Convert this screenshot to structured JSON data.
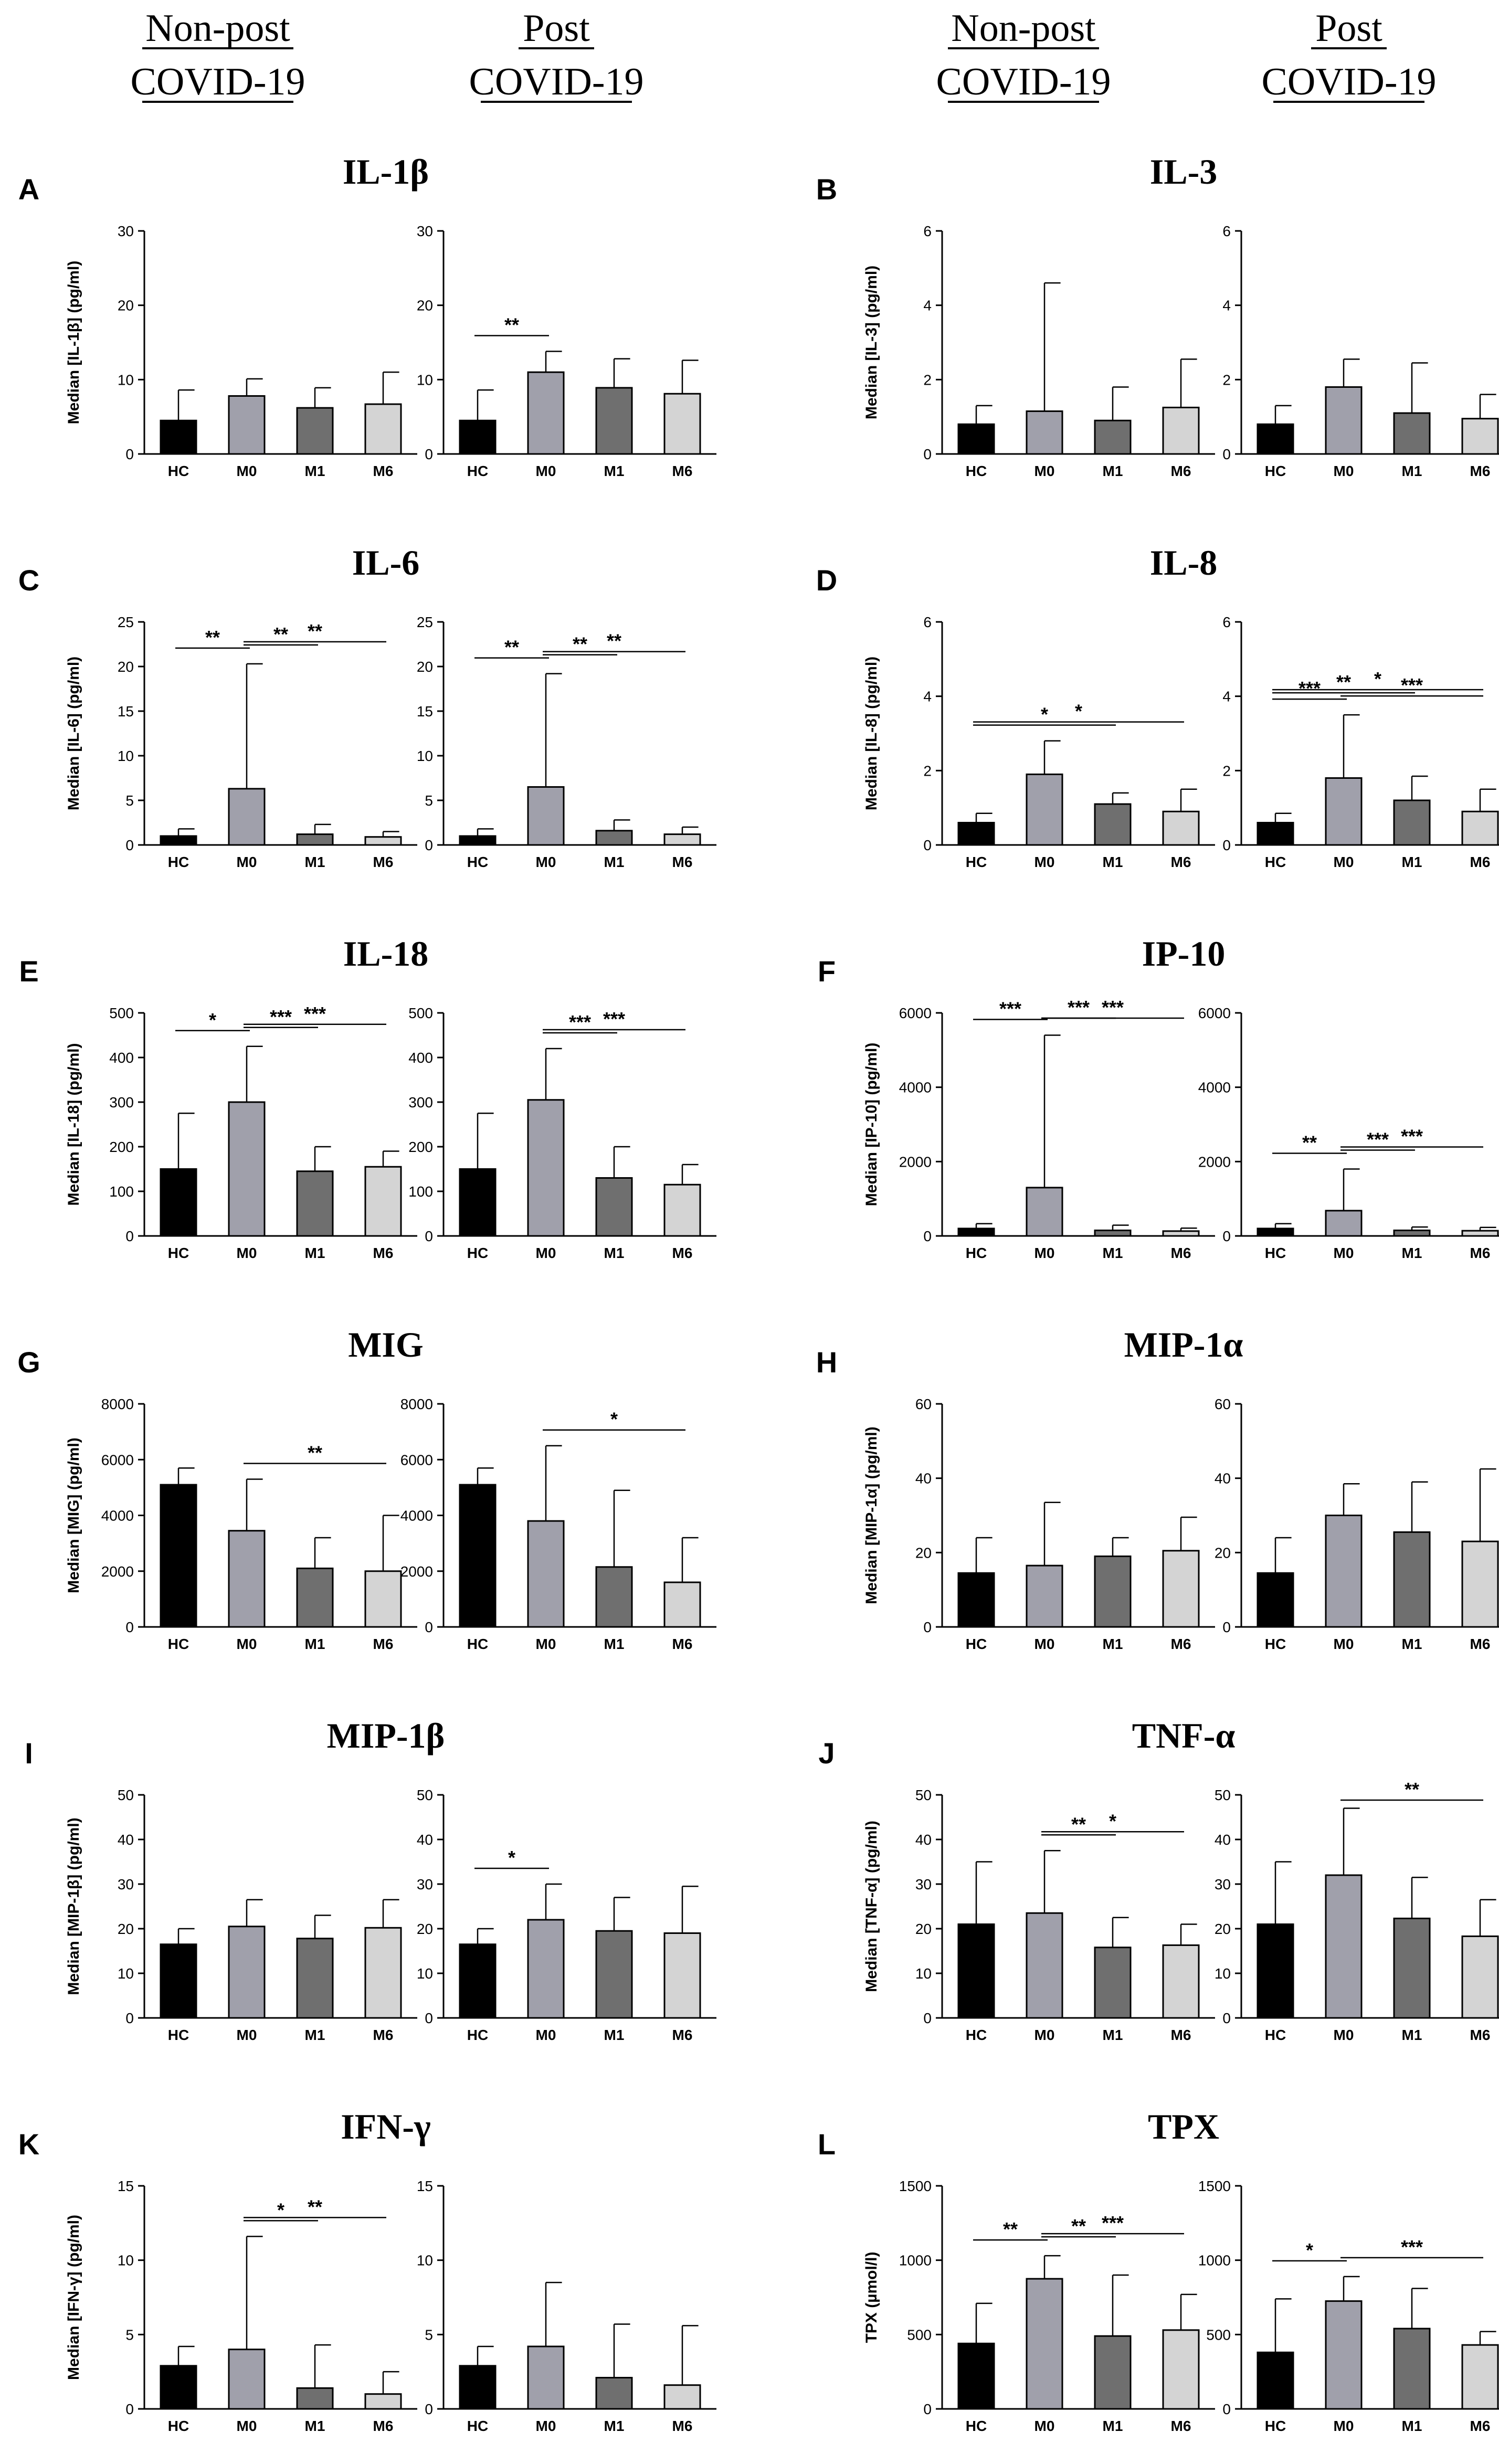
{
  "headers": {
    "left": [
      [
        "Non-post",
        "COVID-19"
      ],
      [
        "Post",
        "COVID-19"
      ]
    ],
    "right": [
      [
        "Non-post",
        "COVID-19"
      ],
      [
        "Post",
        "COVID-19"
      ]
    ]
  },
  "colors": {
    "HC": "#000000",
    "M0": "#a0a0ab",
    "M1": "#6f6f6f",
    "M6": "#d4d4d4"
  },
  "chart_data": [
    {
      "letter": "A",
      "title": "IL-1β",
      "ylabel": "Median [IL-1β] (pg/ml)",
      "type": "bar",
      "categories": [
        "HC",
        "M0",
        "M1",
        "M6"
      ],
      "ylim": [
        0,
        30
      ],
      "yticks": [
        0,
        10,
        20,
        30
      ],
      "panels": [
        {
          "values": [
            4.5,
            7.8,
            6.2,
            6.7
          ],
          "errors": [
            8.6,
            10.1,
            8.9,
            11.0
          ],
          "sig": []
        },
        {
          "values": [
            4.5,
            11.0,
            8.9,
            8.1
          ],
          "errors": [
            8.6,
            13.8,
            12.8,
            12.6
          ],
          "sig": [
            {
              "from": "HC",
              "to": "M0",
              "label": "**"
            }
          ]
        }
      ]
    },
    {
      "letter": "B",
      "title": "IL-3",
      "ylabel": "Median [IL-3] (pg/ml)",
      "type": "bar",
      "categories": [
        "HC",
        "M0",
        "M1",
        "M6"
      ],
      "ylim": [
        0,
        6
      ],
      "yticks": [
        0,
        2,
        4,
        6
      ],
      "panels": [
        {
          "values": [
            0.8,
            1.15,
            0.9,
            1.25
          ],
          "errors": [
            1.3,
            4.6,
            1.8,
            2.55
          ],
          "sig": []
        },
        {
          "values": [
            0.8,
            1.8,
            1.1,
            0.95
          ],
          "errors": [
            1.3,
            2.55,
            2.45,
            1.6
          ],
          "sig": []
        }
      ]
    },
    {
      "letter": "C",
      "title": "IL-6",
      "ylabel": "Median [IL-6] (pg/ml)",
      "type": "bar",
      "categories": [
        "HC",
        "M0",
        "M1",
        "M6"
      ],
      "ylim": [
        0,
        25
      ],
      "yticks": [
        0,
        5,
        10,
        15,
        20,
        25
      ],
      "panels": [
        {
          "values": [
            1.0,
            6.3,
            1.2,
            0.9
          ],
          "errors": [
            1.8,
            20.3,
            2.3,
            1.5
          ],
          "sig": [
            {
              "from": "HC",
              "to": "M0",
              "label": "**"
            },
            {
              "from": "M0",
              "to": "M1",
              "label": "**"
            },
            {
              "from": "M0",
              "to": "M6",
              "label": "**"
            }
          ]
        },
        {
          "values": [
            1.0,
            6.5,
            1.6,
            1.2
          ],
          "errors": [
            1.8,
            19.2,
            2.8,
            2.0
          ],
          "sig": [
            {
              "from": "HC",
              "to": "M0",
              "label": "**"
            },
            {
              "from": "M0",
              "to": "M1",
              "label": "**"
            },
            {
              "from": "M0",
              "to": "M6",
              "label": "**"
            }
          ]
        }
      ]
    },
    {
      "letter": "D",
      "title": "IL-8",
      "ylabel": "Median [IL-8] (pg/ml)",
      "type": "bar",
      "categories": [
        "HC",
        "M0",
        "M1",
        "M6"
      ],
      "ylim": [
        0,
        6
      ],
      "yticks": [
        0,
        2,
        4,
        6
      ],
      "panels": [
        {
          "values": [
            0.6,
            1.9,
            1.1,
            0.9
          ],
          "errors": [
            0.85,
            2.8,
            1.4,
            1.5
          ],
          "sig": [
            {
              "from": "HC",
              "to": "M1",
              "label": "*"
            },
            {
              "from": "HC",
              "to": "M6",
              "label": "*"
            }
          ]
        },
        {
          "values": [
            0.6,
            1.8,
            1.2,
            0.9
          ],
          "errors": [
            0.85,
            3.5,
            1.85,
            1.5
          ],
          "sig": [
            {
              "from": "HC",
              "to": "M0",
              "label": "***"
            },
            {
              "from": "M0",
              "to": "M6",
              "label": "***"
            },
            {
              "from": "HC",
              "to": "M1",
              "label": "**"
            },
            {
              "from": "HC",
              "to": "M6",
              "label": "*"
            }
          ]
        }
      ]
    },
    {
      "letter": "E",
      "title": "IL-18",
      "ylabel": "Median [IL-18] (pg/ml)",
      "type": "bar",
      "categories": [
        "HC",
        "M0",
        "M1",
        "M6"
      ],
      "ylim": [
        0,
        500
      ],
      "yticks": [
        0,
        100,
        200,
        300,
        400,
        500
      ],
      "panels": [
        {
          "values": [
            150,
            300,
            145,
            155
          ],
          "errors": [
            275,
            425,
            200,
            190
          ],
          "sig": [
            {
              "from": "HC",
              "to": "M0",
              "label": "*"
            },
            {
              "from": "M0",
              "to": "M1",
              "label": "***"
            },
            {
              "from": "M0",
              "to": "M6",
              "label": "***"
            }
          ]
        },
        {
          "values": [
            150,
            305,
            130,
            115
          ],
          "errors": [
            275,
            420,
            200,
            160
          ],
          "sig": [
            {
              "from": "M0",
              "to": "M1",
              "label": "***"
            },
            {
              "from": "M0",
              "to": "M6",
              "label": "***"
            }
          ]
        }
      ]
    },
    {
      "letter": "F",
      "title": "IP-10",
      "ylabel": "Median [IP-10] (pg/ml)",
      "type": "bar",
      "categories": [
        "HC",
        "M0",
        "M1",
        "M6"
      ],
      "ylim": [
        0,
        6000
      ],
      "yticks": [
        0,
        2000,
        4000,
        6000
      ],
      "panels": [
        {
          "values": [
            200,
            1300,
            150,
            130
          ],
          "errors": [
            330,
            5400,
            290,
            210
          ],
          "sig": [
            {
              "from": "HC",
              "to": "M0",
              "label": "***"
            },
            {
              "from": "M0",
              "to": "M1",
              "label": "***"
            },
            {
              "from": "M0",
              "to": "M6",
              "label": "***"
            }
          ]
        },
        {
          "values": [
            200,
            680,
            150,
            140
          ],
          "errors": [
            330,
            1800,
            240,
            230
          ],
          "sig": [
            {
              "from": "HC",
              "to": "M0",
              "label": "**"
            },
            {
              "from": "M0",
              "to": "M1",
              "label": "***"
            },
            {
              "from": "M0",
              "to": "M6",
              "label": "***"
            }
          ]
        }
      ]
    },
    {
      "letter": "G",
      "title": "MIG",
      "ylabel": "Median [MIG] (pg/ml)",
      "type": "bar",
      "categories": [
        "HC",
        "M0",
        "M1",
        "M6"
      ],
      "ylim": [
        0,
        8000
      ],
      "yticks": [
        0,
        2000,
        4000,
        6000,
        8000
      ],
      "panels": [
        {
          "values": [
            5100,
            3450,
            2100,
            2000
          ],
          "errors": [
            5700,
            5300,
            3200,
            4000
          ],
          "sig": [
            {
              "from": "M0",
              "to": "M6",
              "label": "**"
            }
          ]
        },
        {
          "values": [
            5100,
            3800,
            2150,
            1600
          ],
          "errors": [
            5700,
            6500,
            4900,
            3200
          ],
          "sig": [
            {
              "from": "M0",
              "to": "M6",
              "label": "*"
            }
          ]
        }
      ]
    },
    {
      "letter": "H",
      "title": "MIP-1α",
      "ylabel": "Median [MIP-1α] (pg/ml)",
      "type": "bar",
      "categories": [
        "HC",
        "M0",
        "M1",
        "M6"
      ],
      "ylim": [
        0,
        60
      ],
      "yticks": [
        0,
        20,
        40,
        60
      ],
      "panels": [
        {
          "values": [
            14.5,
            16.5,
            19.0,
            20.5
          ],
          "errors": [
            24,
            33.5,
            24,
            29.5
          ],
          "sig": []
        },
        {
          "values": [
            14.5,
            30.0,
            25.5,
            23.0
          ],
          "errors": [
            24,
            38.5,
            39,
            42.5
          ],
          "sig": []
        }
      ]
    },
    {
      "letter": "I",
      "title": "MIP-1β",
      "ylabel": "Median [MIP-1β] (pg/ml)",
      "type": "bar",
      "categories": [
        "HC",
        "M0",
        "M1",
        "M6"
      ],
      "ylim": [
        0,
        50
      ],
      "yticks": [
        0,
        10,
        20,
        30,
        40,
        50
      ],
      "panels": [
        {
          "values": [
            16.5,
            20.5,
            17.8,
            20.2
          ],
          "errors": [
            20,
            26.5,
            23,
            26.5
          ],
          "sig": []
        },
        {
          "values": [
            16.5,
            22.0,
            19.5,
            19.0
          ],
          "errors": [
            20,
            30,
            27,
            29.5
          ],
          "sig": [
            {
              "from": "HC",
              "to": "M0",
              "label": "*"
            }
          ]
        }
      ]
    },
    {
      "letter": "J",
      "title": "TNF-α",
      "ylabel": "Median [TNF-α] (pg/ml)",
      "type": "bar",
      "categories": [
        "HC",
        "M0",
        "M1",
        "M6"
      ],
      "ylim": [
        0,
        50
      ],
      "yticks": [
        0,
        10,
        20,
        30,
        40,
        50
      ],
      "panels": [
        {
          "values": [
            21.0,
            23.5,
            15.8,
            16.3
          ],
          "errors": [
            35,
            37.5,
            22.5,
            21
          ],
          "sig": [
            {
              "from": "M0",
              "to": "M1",
              "label": "**"
            },
            {
              "from": "M0",
              "to": "M6",
              "label": "*"
            }
          ]
        },
        {
          "values": [
            21.0,
            32.0,
            22.3,
            18.3
          ],
          "errors": [
            35,
            47,
            31.5,
            26.5
          ],
          "sig": [
            {
              "from": "M0",
              "to": "M6",
              "label": "**"
            }
          ]
        }
      ]
    },
    {
      "letter": "K",
      "title": "IFN-γ",
      "ylabel": "Median [IFN-γ] (pg/ml)",
      "type": "bar",
      "categories": [
        "HC",
        "M0",
        "M1",
        "M6"
      ],
      "ylim": [
        0,
        15
      ],
      "yticks": [
        0,
        5,
        10,
        15
      ],
      "panels": [
        {
          "values": [
            2.9,
            4.0,
            1.4,
            1.0
          ],
          "errors": [
            4.2,
            11.6,
            4.3,
            2.5
          ],
          "sig": [
            {
              "from": "M0",
              "to": "M1",
              "label": "*"
            },
            {
              "from": "M0",
              "to": "M6",
              "label": "**"
            }
          ]
        },
        {
          "values": [
            2.9,
            4.2,
            2.1,
            1.6
          ],
          "errors": [
            4.2,
            8.5,
            5.7,
            5.6
          ],
          "sig": []
        }
      ]
    },
    {
      "letter": "L",
      "title": "TPX",
      "ylabel": "TPX (µmol/l)",
      "type": "bar",
      "categories": [
        "HC",
        "M0",
        "M1",
        "M6"
      ],
      "ylim": [
        0,
        1500
      ],
      "yticks": [
        0,
        500,
        1000,
        1500
      ],
      "panels": [
        {
          "values": [
            440,
            875,
            490,
            530
          ],
          "errors": [
            710,
            1030,
            900,
            770
          ],
          "sig": [
            {
              "from": "HC",
              "to": "M0",
              "label": "**"
            },
            {
              "from": "M0",
              "to": "M1",
              "label": "**"
            },
            {
              "from": "M0",
              "to": "M6",
              "label": "***"
            }
          ]
        },
        {
          "values": [
            380,
            725,
            540,
            430
          ],
          "errors": [
            740,
            890,
            810,
            520
          ],
          "sig": [
            {
              "from": "HC",
              "to": "M0",
              "label": "*"
            },
            {
              "from": "M0",
              "to": "M6",
              "label": "***"
            }
          ]
        }
      ]
    }
  ]
}
